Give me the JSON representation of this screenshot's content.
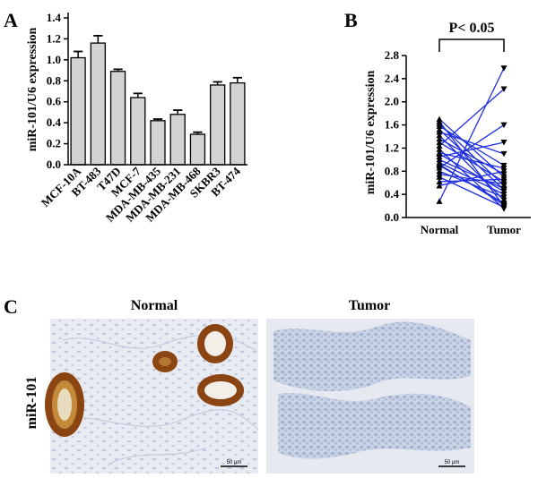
{
  "panels": {
    "A": {
      "label": "A"
    },
    "B": {
      "label": "B"
    },
    "C": {
      "label": "C"
    }
  },
  "chart_data": [
    {
      "panel": "A",
      "type": "bar",
      "ylabel": "miR-101/U6 expression",
      "categories": [
        "MCF-10A",
        "BT-483",
        "T47D",
        "MCF-7",
        "MDA-MB-435",
        "MDA-MB-231",
        "MDA-MB-468",
        "SKBR3",
        "BT-474"
      ],
      "values": [
        1.02,
        1.16,
        0.89,
        0.64,
        0.42,
        0.48,
        0.29,
        0.76,
        0.78
      ],
      "errors": [
        0.06,
        0.07,
        0.02,
        0.04,
        0.015,
        0.04,
        0.02,
        0.03,
        0.05
      ],
      "ylim": [
        0,
        1.4
      ],
      "yticks": [
        "0.0",
        "0.2",
        "0.4",
        "0.6",
        "0.8",
        "1.0",
        "1.2",
        "1.4"
      ],
      "bar_color": "#d3d3d3"
    },
    {
      "panel": "B",
      "type": "line",
      "ylabel": "miR-101/U6 expression",
      "categories": [
        "Normal",
        "Tumor"
      ],
      "ylim": [
        0,
        2.8
      ],
      "yticks": [
        "0.0",
        "0.4",
        "0.8",
        "1.2",
        "1.6",
        "2.0",
        "2.4",
        "2.8"
      ],
      "significance": "P< 0.05",
      "line_color": "#1f2fe0",
      "pairs": [
        [
          1.7,
          0.7
        ],
        [
          1.66,
          0.2
        ],
        [
          1.62,
          0.55
        ],
        [
          1.58,
          0.9
        ],
        [
          1.52,
          0.48
        ],
        [
          1.48,
          1.1
        ],
        [
          1.42,
          0.3
        ],
        [
          1.36,
          0.75
        ],
        [
          1.3,
          0.62
        ],
        [
          1.24,
          2.22
        ],
        [
          1.18,
          0.15
        ],
        [
          1.12,
          0.85
        ],
        [
          1.05,
          1.3
        ],
        [
          1.0,
          0.5
        ],
        [
          0.95,
          0.4
        ],
        [
          0.9,
          0.25
        ],
        [
          0.86,
          1.6
        ],
        [
          0.8,
          0.35
        ],
        [
          0.75,
          0.58
        ],
        [
          0.7,
          0.18
        ],
        [
          0.62,
          0.66
        ],
        [
          0.55,
          0.8
        ],
        [
          0.28,
          2.58
        ],
        [
          0.92,
          0.22
        ],
        [
          1.1,
          0.45
        ]
      ]
    }
  ],
  "micrographs": {
    "row_label": "miR-101",
    "normal_title": "Normal",
    "tumor_title": "Tumor",
    "scale_label": "50 µm",
    "stain_color": "#8b4513",
    "tissue_color": "#c9d3e6"
  }
}
